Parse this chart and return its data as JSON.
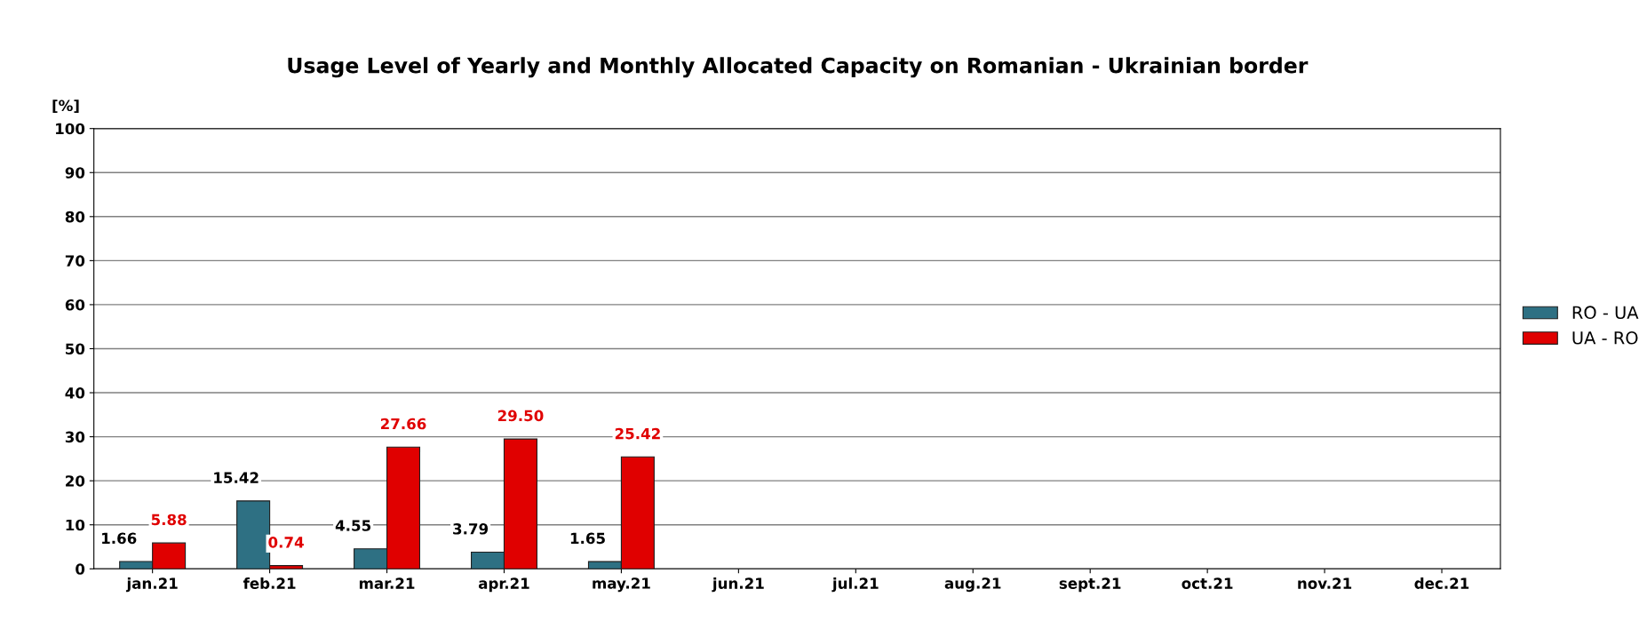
{
  "chart_data": {
    "type": "bar",
    "title": "Usage Level of Yearly and Monthly Allocated Capacity on Romanian - Ukrainian border",
    "ylabel": "[%]",
    "categories": [
      "jan.21",
      "feb.21",
      "mar.21",
      "apr.21",
      "may.21",
      "jun.21",
      "jul.21",
      "aug.21",
      "sept.21",
      "oct.21",
      "nov.21",
      "dec.21"
    ],
    "series": [
      {
        "name": "RO - UA",
        "color": "#2e7083",
        "values": [
          1.66,
          15.42,
          4.55,
          3.79,
          1.65,
          null,
          null,
          null,
          null,
          null,
          null,
          null
        ],
        "value_labels": [
          "1.66",
          "15.42",
          "4.55",
          "3.79",
          "1.65",
          null,
          null,
          null,
          null,
          null,
          null,
          null
        ]
      },
      {
        "name": "UA - RO",
        "color": "#e00000",
        "values": [
          5.88,
          0.74,
          27.66,
          29.5,
          25.42,
          null,
          null,
          null,
          null,
          null,
          null,
          null
        ],
        "value_labels": [
          "5.88",
          "0.74",
          "27.66",
          "29.50",
          "25.42",
          null,
          null,
          null,
          null,
          null,
          null,
          null
        ]
      }
    ],
    "ylim": [
      0,
      100
    ],
    "yticks": [
      0,
      10,
      20,
      30,
      40,
      50,
      60,
      70,
      80,
      90,
      100
    ],
    "grid": "y",
    "legend": "right"
  }
}
